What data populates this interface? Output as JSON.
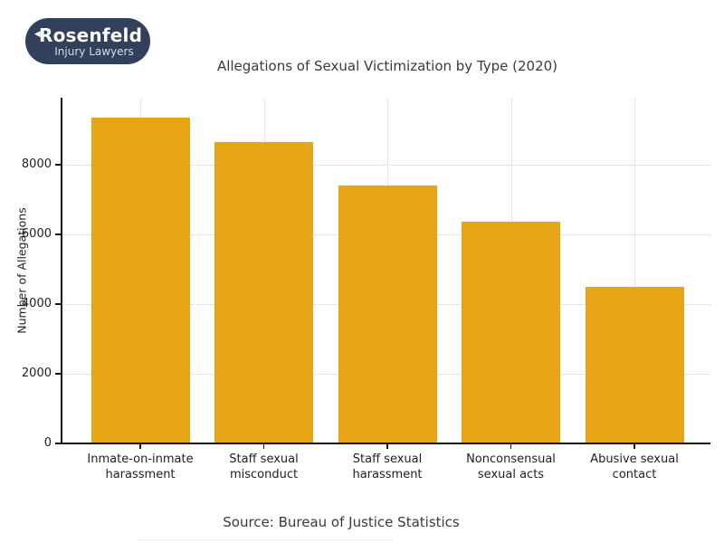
{
  "logo": {
    "line1": "Rosenfeld",
    "line2": "Injury Lawyers",
    "bg_color": "#31405B",
    "arrow_icon": "left-arrow"
  },
  "chart_data": {
    "type": "bar",
    "title": "Allegations of Sexual Victimization by Type (2020)",
    "categories": [
      "Inmate-on-inmate\nharassment",
      "Staff sexual\nmisconduct",
      "Staff sexual\nharassment",
      "Nonconsensual\nsexual acts",
      "Abusive sexual\ncontact"
    ],
    "values": [
      9350,
      8650,
      7400,
      6350,
      4480
    ],
    "xlabel": "",
    "ylabel": "Number of Allegations",
    "yticks": [
      0,
      2000,
      4000,
      6000,
      8000
    ],
    "ylim": [
      0,
      9920
    ],
    "bar_color": "#E7A414",
    "grid": "dotted",
    "legend": "none",
    "source": "Source: Bureau of Justice Statistics"
  }
}
